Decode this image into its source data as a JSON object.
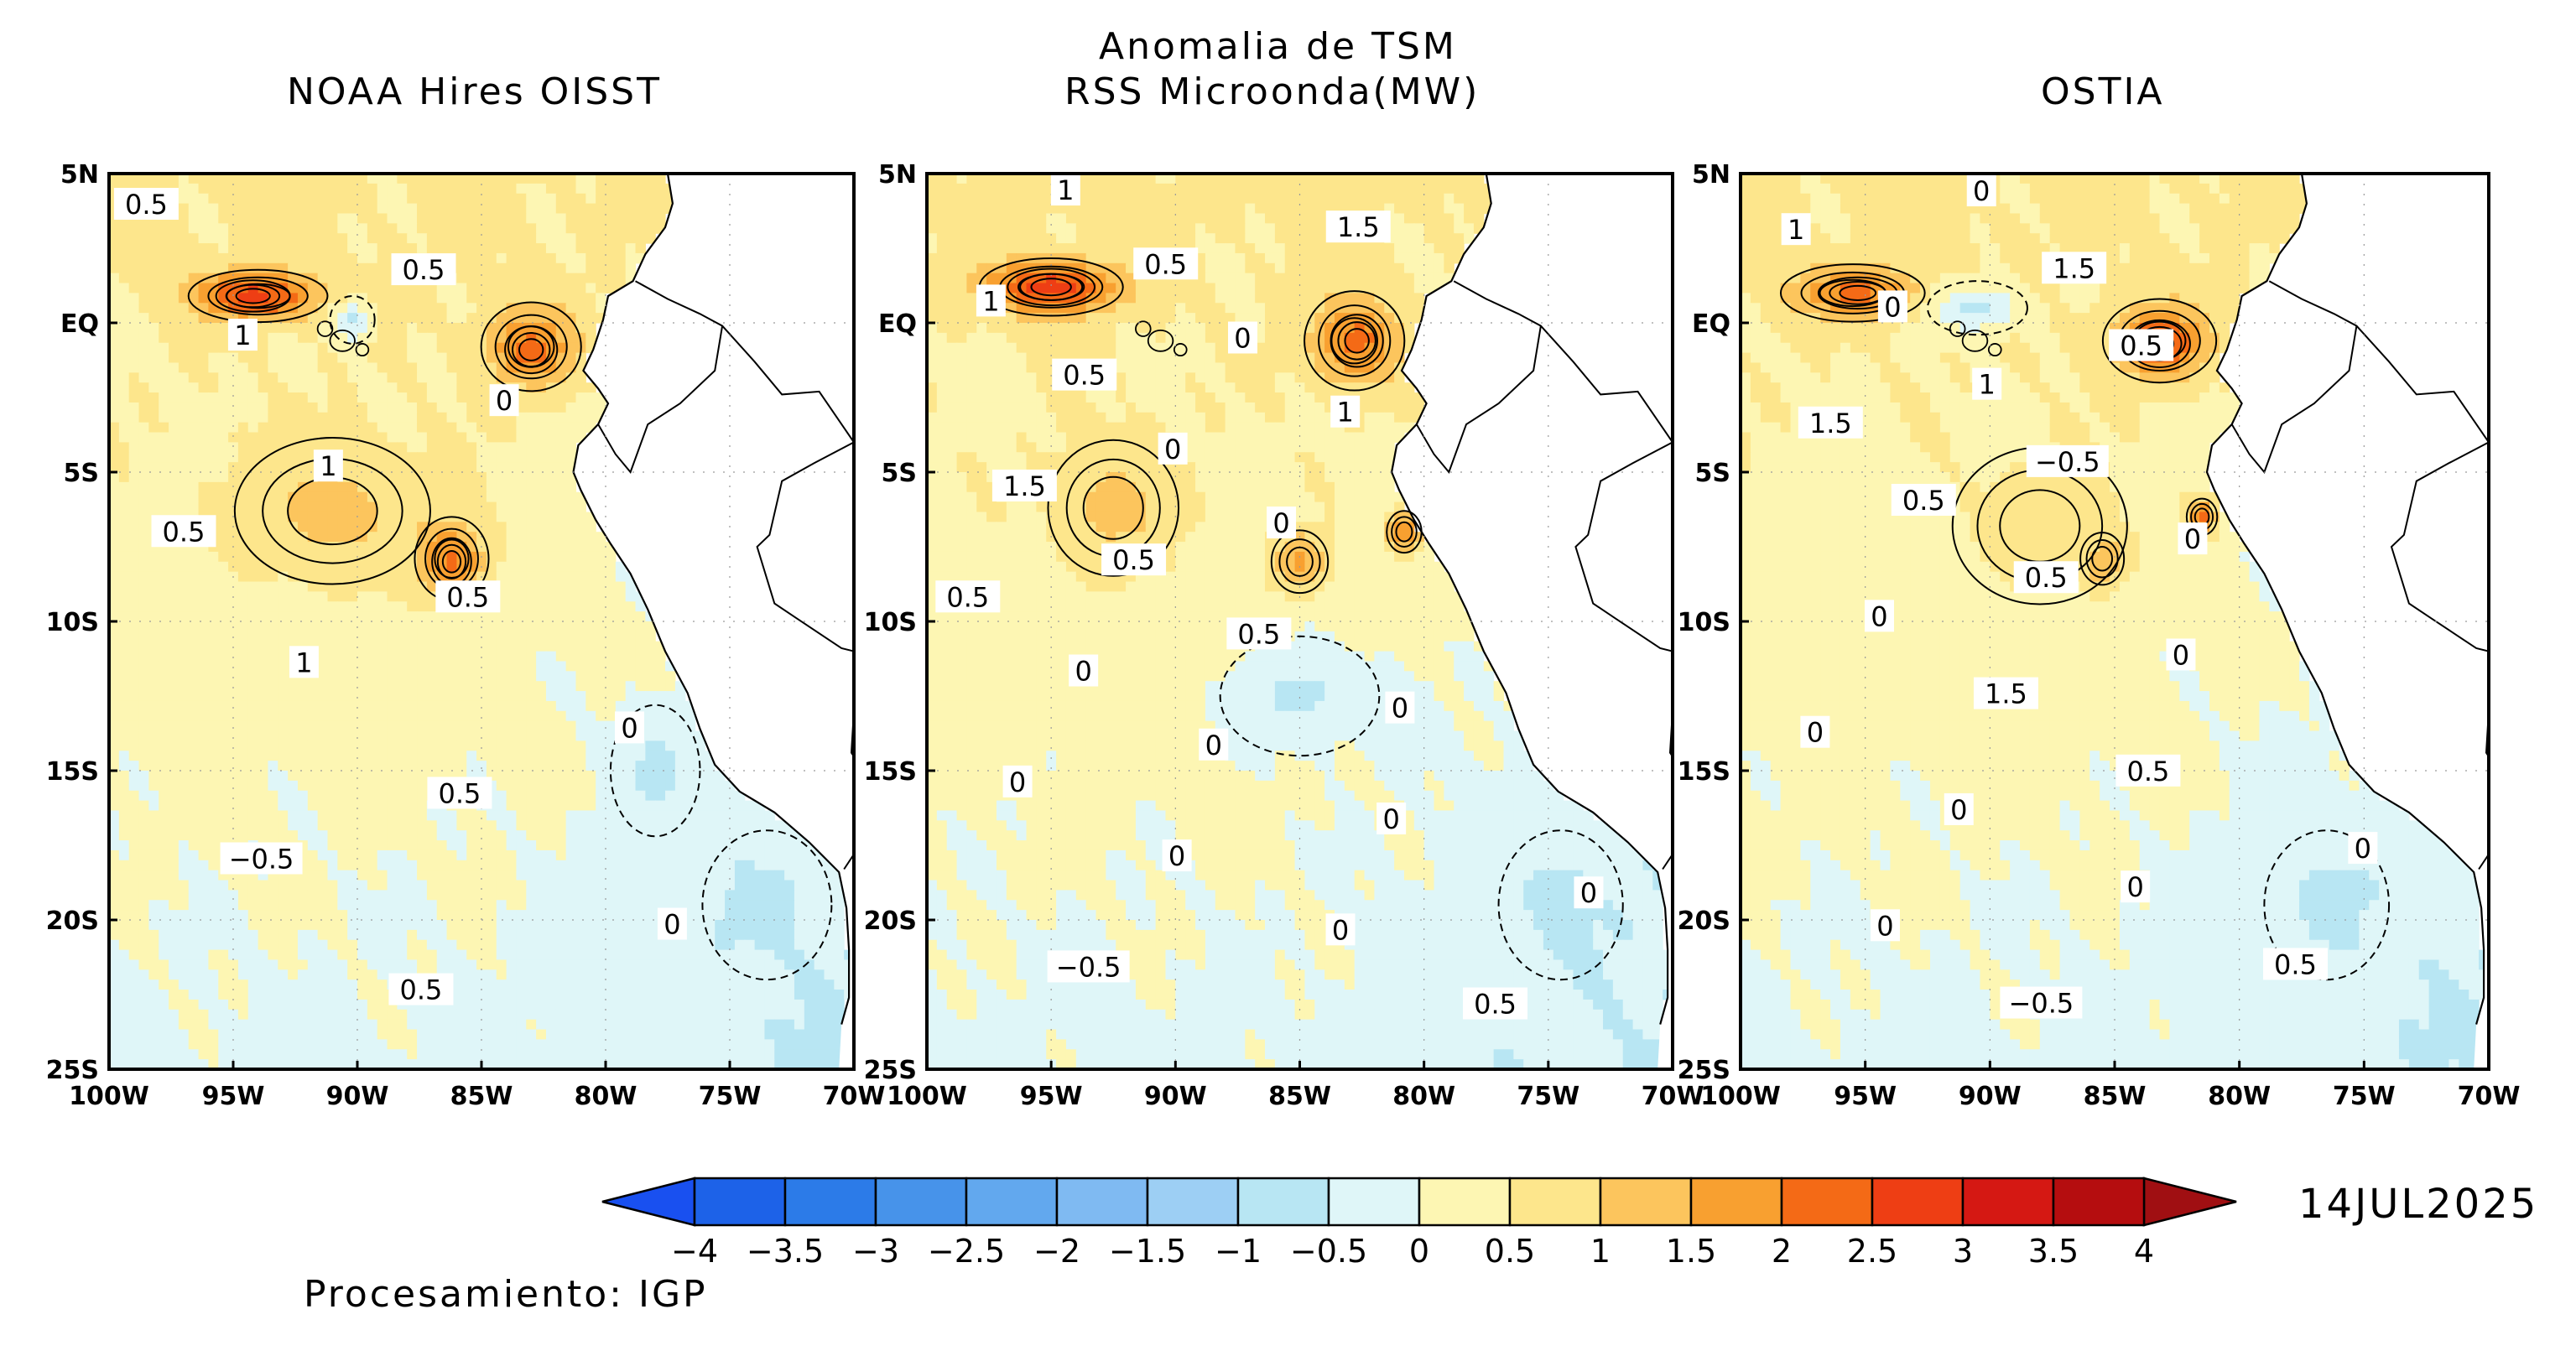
{
  "header": {
    "title_line1": "Anomalia de TSM",
    "title_line2": "RSS Microonda(MW)"
  },
  "panels": [
    {
      "key": "oisst",
      "title": "NOAA Hires OISST",
      "contour_labels": [
        "0.5",
        "0.5",
        "1",
        "0",
        "1",
        "0.5",
        "0.5",
        "1",
        "0",
        "0.5",
        "-0.5",
        "0",
        "0.5"
      ],
      "blobs": [
        {
          "lon": -94,
          "lat": 0.9,
          "rx": 3.2,
          "ry": 1.0,
          "v": 2.0
        },
        {
          "lon": -94.2,
          "lat": 0.9,
          "rx": 1.7,
          "ry": 0.6,
          "v": 2.5
        },
        {
          "lon": -83.0,
          "lat": -0.8,
          "rx": 2.3,
          "ry": 1.7,
          "v": 1.5
        },
        {
          "lon": -83.0,
          "lat": -0.9,
          "rx": 1.2,
          "ry": 0.9,
          "v": 2.0
        },
        {
          "lon": -91.0,
          "lat": -6.3,
          "rx": 4.5,
          "ry": 2.8,
          "v": 1.0
        },
        {
          "lon": -86.2,
          "lat": -7.9,
          "rx": 1.7,
          "ry": 1.6,
          "v": 1.5
        },
        {
          "lon": -86.2,
          "lat": -8.0,
          "rx": 0.9,
          "ry": 0.9,
          "v": 2.0
        },
        {
          "lon": -78.0,
          "lat": -15.0,
          "rx": 1.8,
          "ry": 2.2,
          "v": -0.5
        },
        {
          "lon": -73.5,
          "lat": -19.5,
          "rx": 2.6,
          "ry": 2.5,
          "v": -0.5
        },
        {
          "lon": -90.2,
          "lat": 0.1,
          "rx": 0.9,
          "ry": 0.8,
          "v": -0.5
        }
      ]
    },
    {
      "key": "rss",
      "title": "",
      "contour_labels": [
        "1",
        "1.5",
        "0.5",
        "1",
        "0",
        "0.5",
        "1",
        "0",
        "1.5",
        "0",
        "0.5",
        "0.5",
        "0.5",
        "0",
        "0",
        "0",
        "0",
        "0",
        "0",
        "0",
        "0",
        "-0.5",
        "0.5"
      ],
      "blobs": [
        {
          "lon": -95.0,
          "lat": 1.2,
          "rx": 3.3,
          "ry": 1.1,
          "v": 2.0
        },
        {
          "lon": -95.0,
          "lat": 1.2,
          "rx": 2.0,
          "ry": 0.7,
          "v": 2.5
        },
        {
          "lon": -82.8,
          "lat": -0.6,
          "rx": 2.3,
          "ry": 1.9,
          "v": 1.5
        },
        {
          "lon": -82.7,
          "lat": -0.6,
          "rx": 1.2,
          "ry": 1.0,
          "v": 2.0
        },
        {
          "lon": -92.5,
          "lat": -6.2,
          "rx": 3.0,
          "ry": 2.6,
          "v": 1.0
        },
        {
          "lon": -85.0,
          "lat": -8.0,
          "rx": 1.3,
          "ry": 1.2,
          "v": 1.5
        },
        {
          "lon": -80.8,
          "lat": -7.0,
          "rx": 0.8,
          "ry": 0.8,
          "v": 2.0
        },
        {
          "lon": -85.0,
          "lat": -12.5,
          "rx": 3.2,
          "ry": 2.0,
          "v": -0.5
        },
        {
          "lon": -74.5,
          "lat": -19.5,
          "rx": 2.5,
          "ry": 2.5,
          "v": -0.5
        }
      ]
    },
    {
      "key": "ostia",
      "title": "OSTIA",
      "contour_labels": [
        "0",
        "1",
        "1.5",
        "0",
        "0.5",
        "1",
        "1.5",
        "-0.5",
        "0.5",
        "0",
        "0.5",
        "0",
        "0",
        "1.5",
        "0",
        "0.5",
        "0",
        "0",
        "0",
        "0",
        "0.5",
        "-0.5"
      ],
      "blobs": [
        {
          "lon": -95.5,
          "lat": 1.0,
          "rx": 3.3,
          "ry": 1.1,
          "v": 1.5
        },
        {
          "lon": -95.3,
          "lat": 1.0,
          "rx": 1.8,
          "ry": 0.6,
          "v": 2.0
        },
        {
          "lon": -83.2,
          "lat": -0.6,
          "rx": 2.6,
          "ry": 1.6,
          "v": 1.5
        },
        {
          "lon": -83.2,
          "lat": -0.7,
          "rx": 1.4,
          "ry": 0.9,
          "v": 2.5
        },
        {
          "lon": -85.5,
          "lat": -7.9,
          "rx": 1.0,
          "ry": 1.0,
          "v": 2.0
        },
        {
          "lon": -81.5,
          "lat": -6.5,
          "rx": 0.7,
          "ry": 0.7,
          "v": 2.0
        },
        {
          "lon": -88.0,
          "lat": -6.8,
          "rx": 4.0,
          "ry": 3.0,
          "v": 0.5
        },
        {
          "lon": -90.5,
          "lat": 0.5,
          "rx": 2.0,
          "ry": 0.9,
          "v": -0.5
        },
        {
          "lon": -76.5,
          "lat": -19.5,
          "rx": 2.5,
          "ry": 2.5,
          "v": -0.5
        }
      ]
    }
  ],
  "axes": {
    "lon_ticks": [
      "100W",
      "95W",
      "90W",
      "85W",
      "80W",
      "75W",
      "70W"
    ],
    "lat_ticks": [
      "5N",
      "EQ",
      "5S",
      "10S",
      "15S",
      "20S",
      "25S"
    ],
    "lon_values": [
      -100,
      -95,
      -90,
      -85,
      -80,
      -75,
      -70
    ],
    "lat_values": [
      5,
      0,
      -5,
      -10,
      -15,
      -20,
      -25
    ],
    "lon_range": [
      -100,
      -70
    ],
    "lat_range": [
      -25,
      5
    ]
  },
  "colorbar": {
    "labels": [
      "-4",
      "-3.5",
      "-3",
      "-2.5",
      "-2",
      "-1.5",
      "-1",
      "-0.5",
      "0",
      "0.5",
      "1",
      "1.5",
      "2",
      "2.5",
      "3",
      "3.5",
      "4"
    ],
    "values": [
      -4,
      -3.5,
      -3,
      -2.5,
      -2,
      -1.5,
      -1,
      -0.5,
      0,
      0.5,
      1,
      1.5,
      2,
      2.5,
      3,
      3.5,
      4
    ],
    "colors": [
      "#1d62e8",
      "#2c7be8",
      "#4793ea",
      "#62a8ee",
      "#7fbaf2",
      "#9dcff4",
      "#b8e6f3",
      "#dff6f8",
      "#fdf6b3",
      "#fde68c",
      "#fcc55d",
      "#f8a030",
      "#f46a16",
      "#ee3e14",
      "#d51813",
      "#b50d0f"
    ],
    "end_low_color": "#1950f0",
    "end_high_color": "#a00f12"
  },
  "footer": {
    "date": "14JUL2025",
    "credit": "Procesamiento: IGP"
  }
}
